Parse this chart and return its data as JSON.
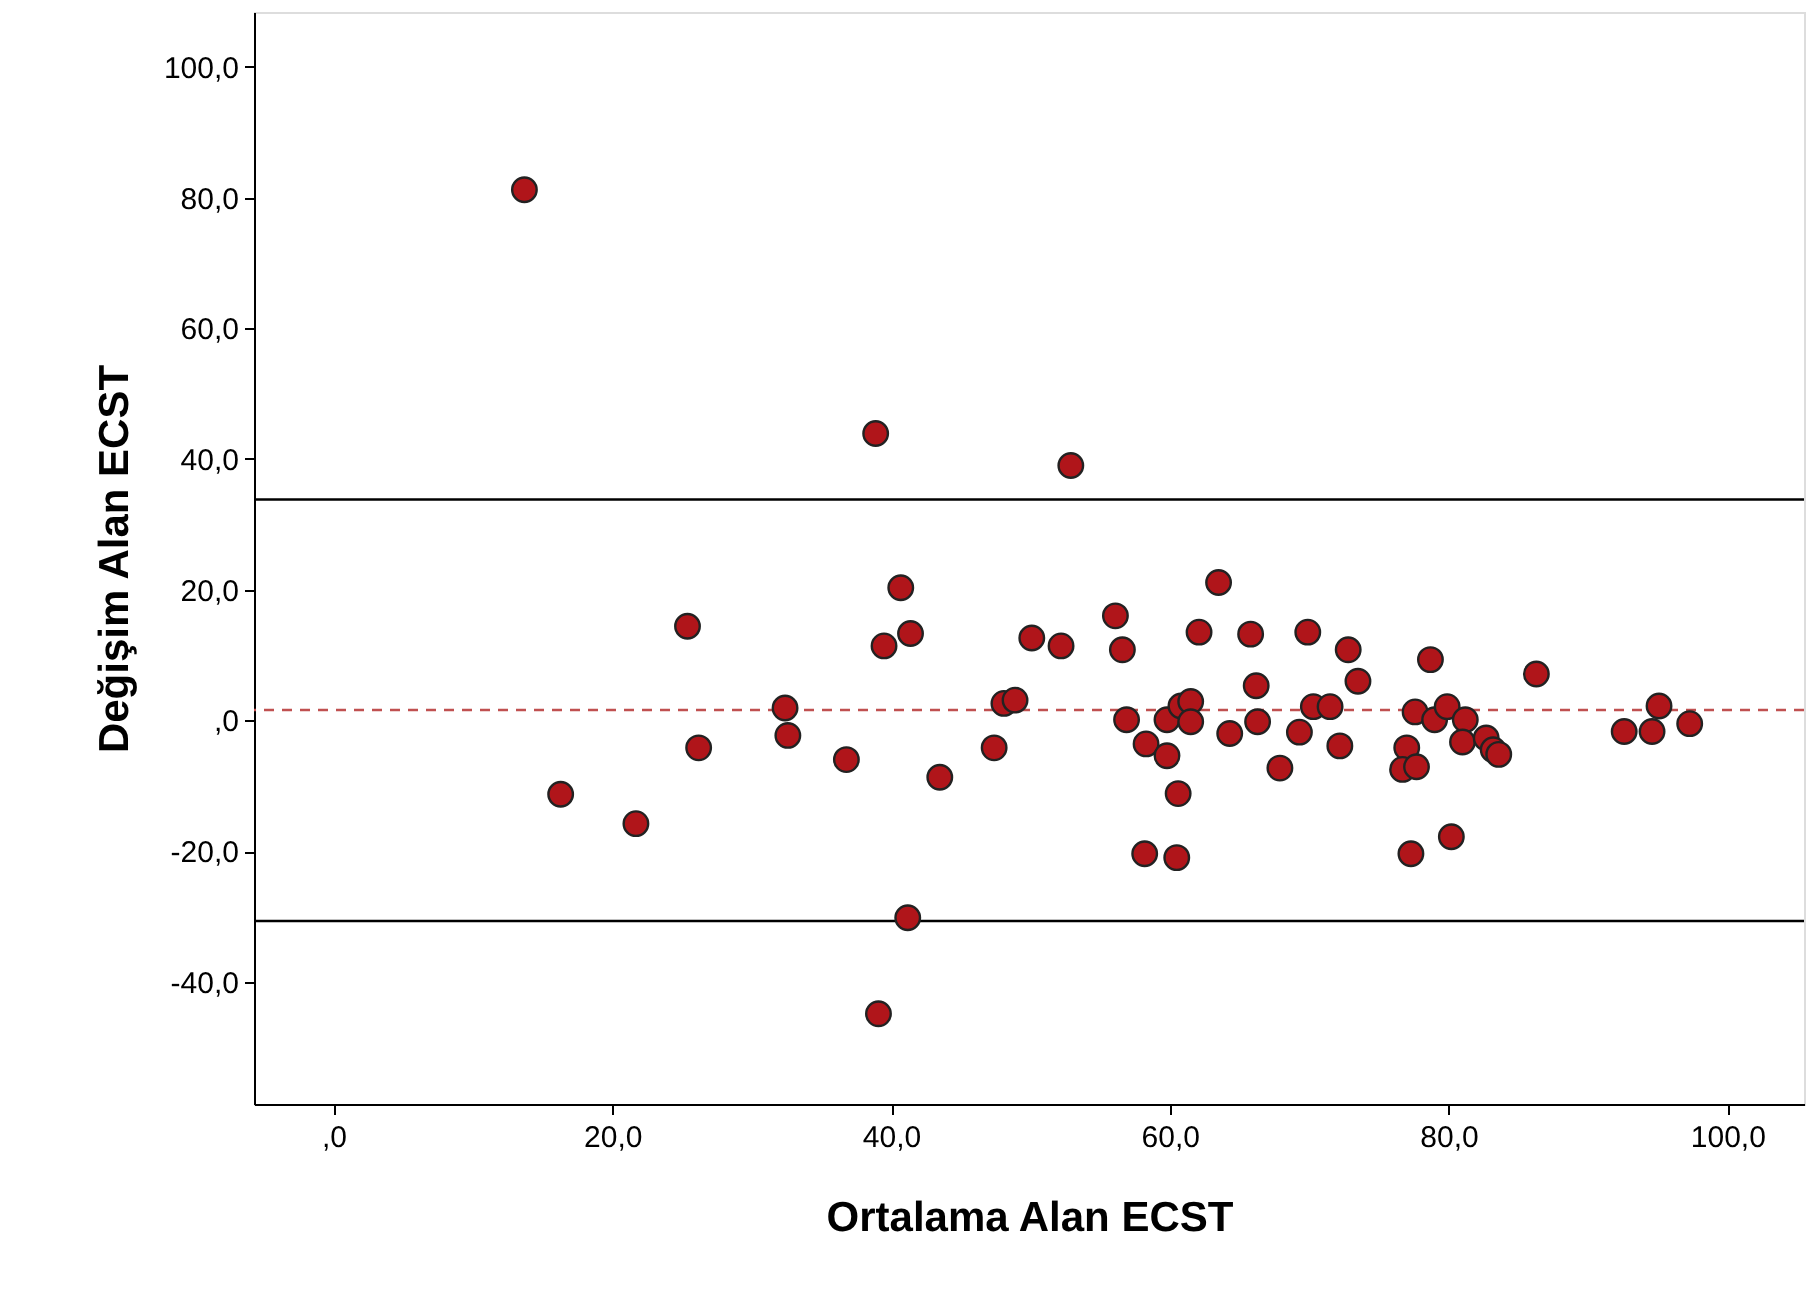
{
  "chart_data": {
    "type": "scatter",
    "xlabel": "Ortalama Alan ECST",
    "ylabel": "Değişim Alan ECST",
    "xlim": [
      -5.7,
      105.5
    ],
    "ylim": [
      -58.7,
      108.4
    ],
    "xticks": [
      {
        "value": 0,
        "label": ",0"
      },
      {
        "value": 20,
        "label": "20,0"
      },
      {
        "value": 40,
        "label": "40,0"
      },
      {
        "value": 60,
        "label": "60,0"
      },
      {
        "value": 80,
        "label": "80,0"
      },
      {
        "value": 100,
        "label": "100,0"
      }
    ],
    "yticks": [
      {
        "value": -40,
        "label": "-40,0"
      },
      {
        "value": -20,
        "label": "-20,0"
      },
      {
        "value": 0,
        "label": ",0"
      },
      {
        "value": 20,
        "label": "20,0"
      },
      {
        "value": 40,
        "label": "40,0"
      },
      {
        "value": 60,
        "label": "60,0"
      },
      {
        "value": 80,
        "label": "80,0"
      },
      {
        "value": 100,
        "label": "100,0"
      }
    ],
    "grid": false,
    "marker": "circle",
    "series": [
      {
        "color": "#b0151a",
        "x": [
          13.7,
          38.9,
          52.9,
          25.4,
          16.3,
          21.7,
          26.2,
          32.4,
          32.6,
          36.8,
          40.7,
          39.5,
          41.4,
          43.5,
          41.2,
          39.1,
          47.4,
          48.1,
          48.9,
          50.1,
          52.2,
          56.1,
          56.6,
          56.9,
          58.3,
          59.8,
          60.6,
          58.2,
          60.5,
          59.8,
          63.5,
          62.1,
          65.8,
          69.9,
          72.8,
          73.5,
          66.2,
          78.7,
          86.3,
          60.8,
          61.5,
          61.5,
          64.3,
          66.3,
          67.9,
          69.3,
          70.3,
          71.5,
          72.2,
          77.6,
          79.0,
          79.9,
          81.2,
          81.0,
          82.7,
          83.2,
          83.6,
          77.0,
          76.7,
          77.7,
          77.3,
          80.2,
          92.6,
          94.6,
          95.1,
          97.3
        ],
        "values": [
          81.2,
          43.9,
          39.0,
          14.4,
          -11.3,
          -15.8,
          -4.2,
          1.9,
          -2.3,
          -6.0,
          20.3,
          11.4,
          13.3,
          -8.7,
          -30.2,
          -44.9,
          -4.2,
          2.6,
          3.1,
          12.6,
          11.4,
          16.0,
          10.8,
          0.1,
          -3.6,
          -5.4,
          -11.2,
          -20.4,
          -21.0,
          0.1,
          21.1,
          13.5,
          13.2,
          13.5,
          10.8,
          6.0,
          5.3,
          9.3,
          7.1,
          2.2,
          2.9,
          -0.2,
          -2.0,
          -0.2,
          -7.3,
          -1.8,
          2.1,
          2.1,
          -3.9,
          1.3,
          0.1,
          2.1,
          0.1,
          -3.3,
          -2.7,
          -4.5,
          -5.2,
          -4.2,
          -7.5,
          -7.1,
          -20.4,
          -17.8,
          -1.7,
          -1.7,
          2.2,
          -0.5
        ]
      }
    ],
    "ref_lines": [
      {
        "axis": "y",
        "value": 33.8,
        "color": "#000000",
        "line_style": "solid"
      },
      {
        "axis": "y",
        "value": -30.7,
        "color": "#000000",
        "line_style": "solid"
      },
      {
        "axis": "y",
        "value": 1.6,
        "color": "#c05050",
        "line_style": "dashed"
      }
    ]
  }
}
